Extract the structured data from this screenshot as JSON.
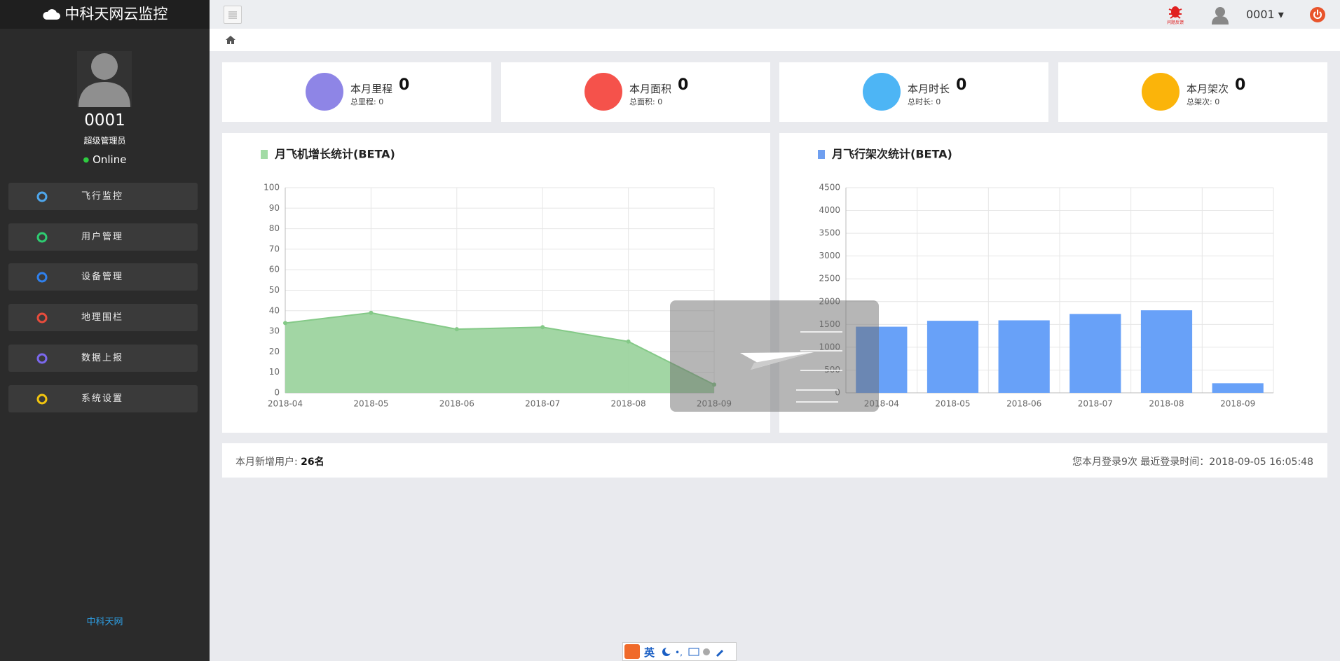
{
  "header": {
    "brand": "中科天网云监控",
    "user": "0001",
    "feedback": "问题反馈"
  },
  "sidebar": {
    "user": "0001",
    "role": "超级管理员",
    "status": "Online",
    "menu": [
      "飞行监控",
      "用户管理",
      "设备管理",
      "地理围栏",
      "数据上报",
      "系统设置"
    ],
    "footer": "中科天网"
  },
  "stats": [
    {
      "label": "本月里程",
      "value": 0,
      "total": "总里程: 0",
      "color": "#8e85e6"
    },
    {
      "label": "本月面积",
      "value": 0,
      "total": "总面积: 0",
      "color": "#f5524b"
    },
    {
      "label": "本月时长",
      "value": 0,
      "total": "总时长: 0",
      "color": "#4db5f5"
    },
    {
      "label": "本月架次",
      "value": 0,
      "total": "总架次: 0",
      "color": "#fbb40a"
    }
  ],
  "chart_data": [
    {
      "type": "area",
      "title": "月飞机增长统计(BETA)",
      "color": "#9dd49f",
      "legend_color": "#a2dba5",
      "categories": [
        "2018-04",
        "2018-05",
        "2018-06",
        "2018-07",
        "2018-08",
        "2018-09"
      ],
      "values": [
        34,
        39,
        31,
        32,
        25,
        4
      ],
      "ylim": [
        0,
        100
      ],
      "yticks": [
        0,
        10,
        20,
        30,
        40,
        50,
        60,
        70,
        80,
        90,
        100
      ],
      "grid": true
    },
    {
      "type": "bar",
      "title": "月飞行架次统计(BETA)",
      "color": "#68a1f8",
      "legend_color": "#6f9ff0",
      "categories": [
        "2018-04",
        "2018-05",
        "2018-06",
        "2018-07",
        "2018-08",
        "2018-09"
      ],
      "values": [
        1450,
        1580,
        1590,
        1730,
        1810,
        210
      ],
      "ylim": [
        0,
        4500
      ],
      "yticks": [
        0,
        500,
        1000,
        1500,
        2000,
        2500,
        3000,
        3500,
        4000,
        4500
      ],
      "grid": true
    }
  ],
  "summary": {
    "new_users_label": "本月新增用户:",
    "new_users": "26名",
    "login_info": "您本月登录9次 最近登录时间：2018-09-05 16:05:48"
  },
  "ime": {
    "lang": "英"
  }
}
